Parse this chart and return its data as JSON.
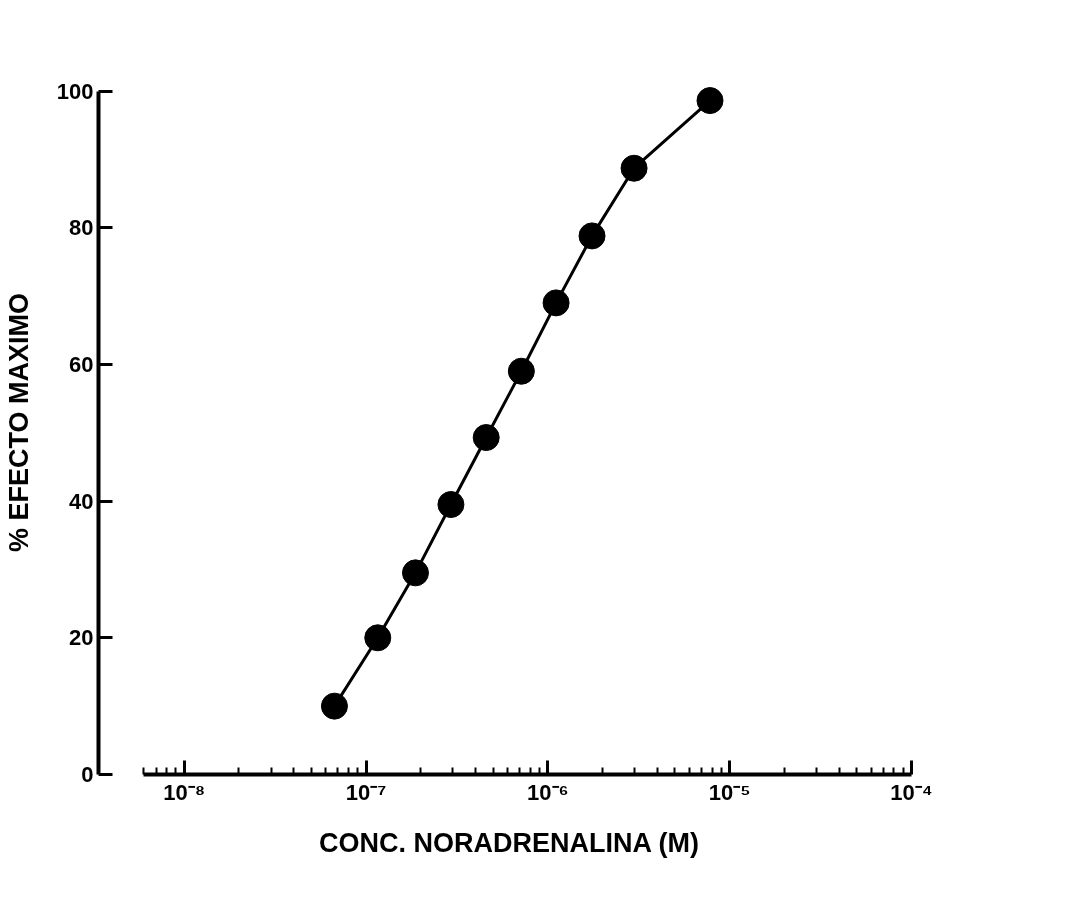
{
  "chart_data": {
    "type": "line",
    "xlabel": "CONC. NORADRENALINA (M)",
    "ylabel": "% EFECTO MAXIMO",
    "log": "x",
    "x": [
      6.7e-08,
      1.16e-07,
      1.87e-07,
      2.93e-07,
      4.58e-07,
      7.15e-07,
      1.11e-06,
      1.75e-06,
      2.98e-06,
      7.8e-06
    ],
    "series": [
      {
        "color": "#000000",
        "values": [
          10,
          20,
          29.5,
          39.5,
          49.3,
          59,
          69,
          78.8,
          88.7,
          98.6
        ]
      }
    ],
    "xlim": [
      6e-09,
      0.0001
    ],
    "ylim": [
      0,
      100
    ],
    "xticks": [
      {
        "value": 1e-08,
        "label": "10⁻⁸"
      },
      {
        "value": 1e-07,
        "label": "10⁻⁷"
      },
      {
        "value": 1e-06,
        "label": "10⁻⁶"
      },
      {
        "value": 1e-05,
        "label": "10⁻⁵"
      },
      {
        "value": 0.0001,
        "label": "10⁻⁴"
      }
    ],
    "yticks": [
      0,
      20,
      40,
      60,
      80,
      100
    ],
    "grid": false,
    "marker": "circle",
    "line_style": "solid"
  }
}
